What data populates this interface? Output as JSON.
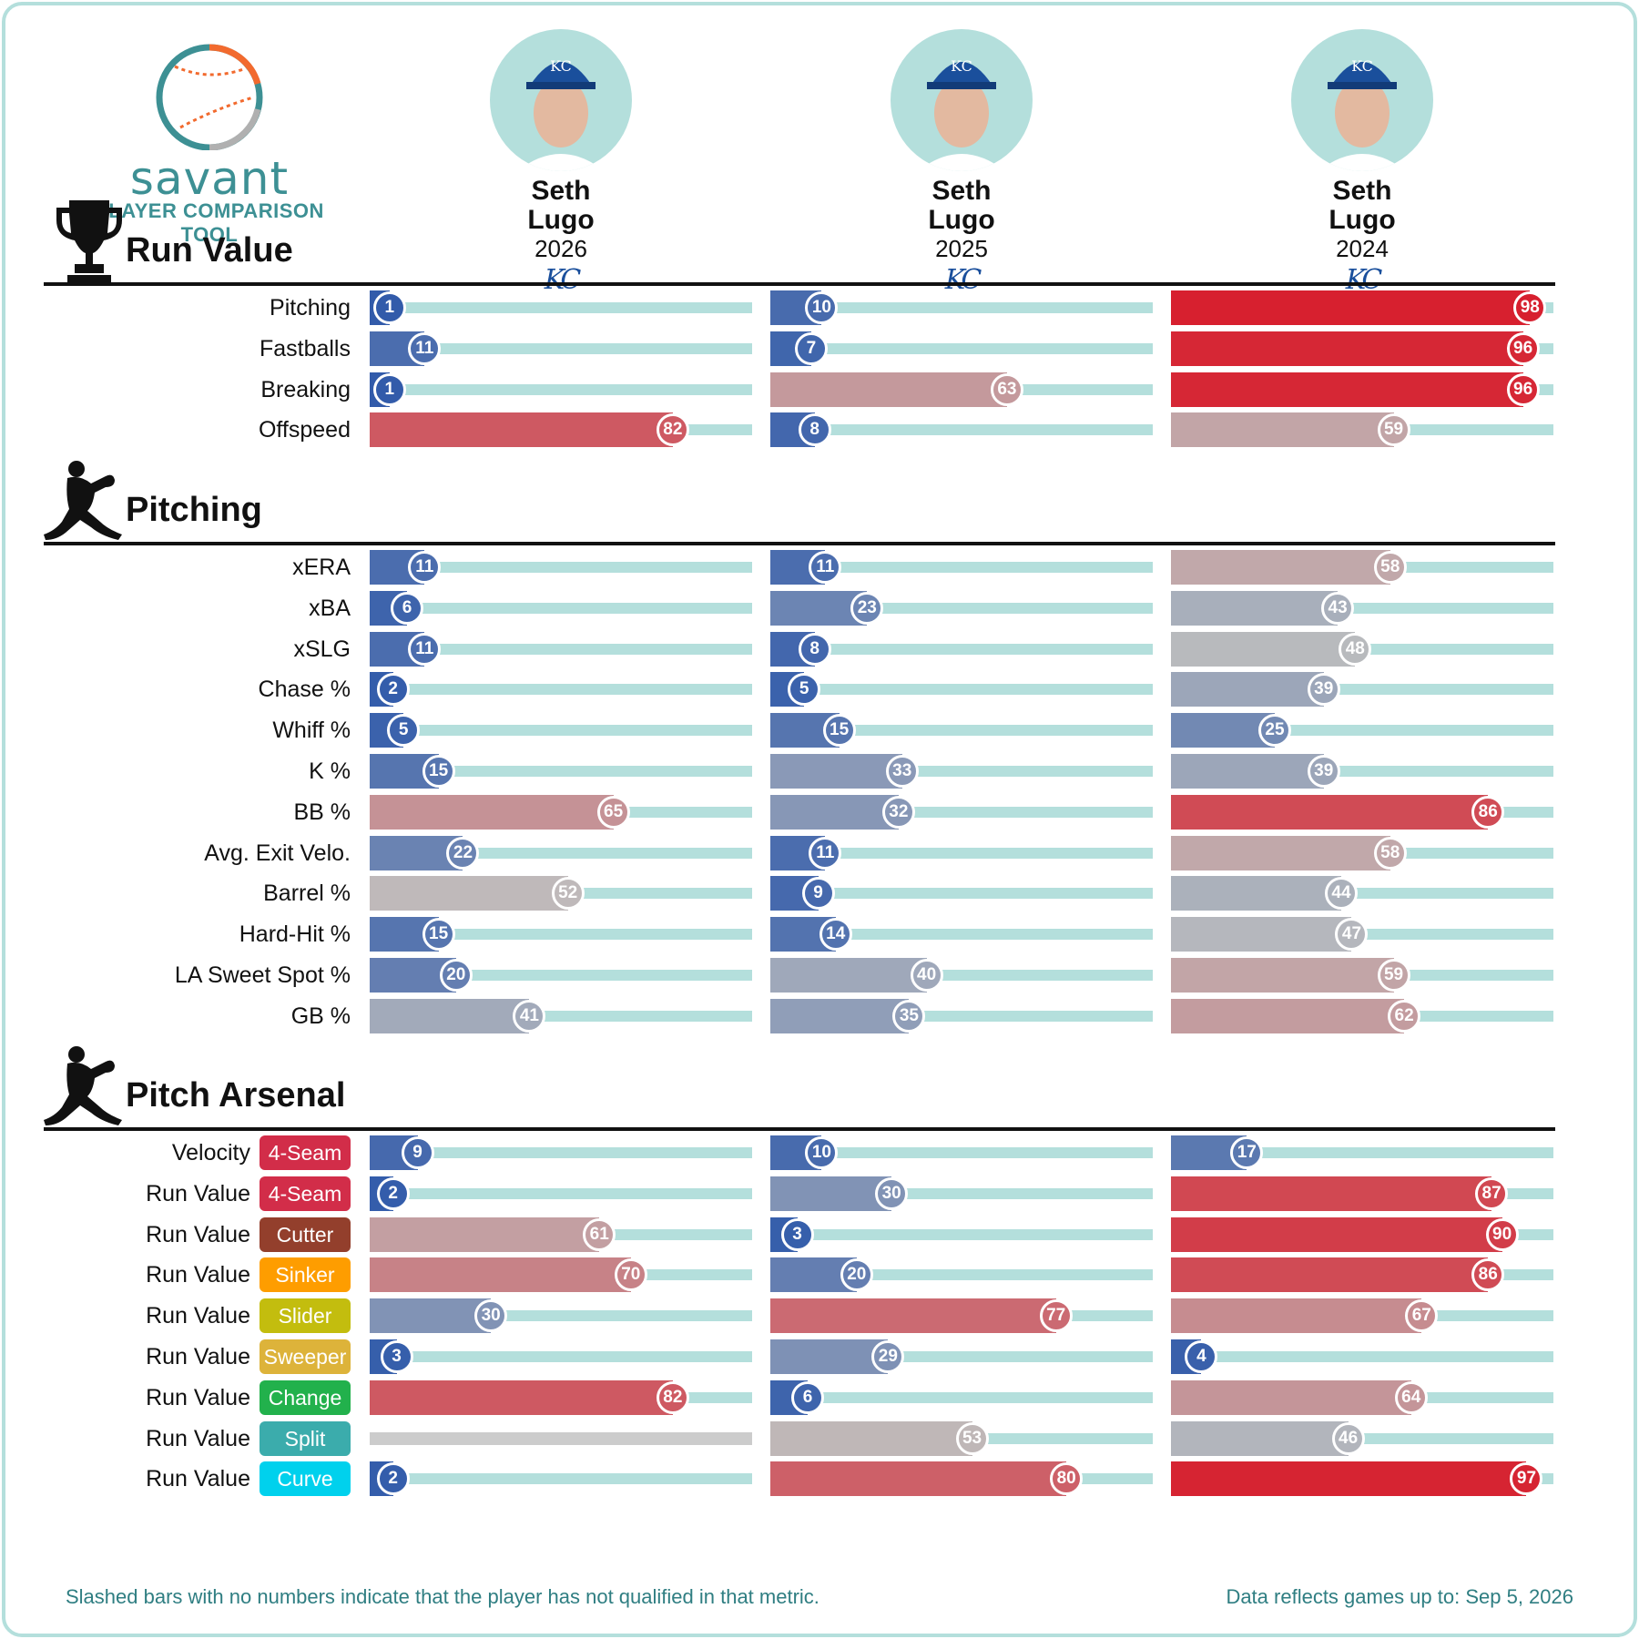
{
  "brand": {
    "name": "savant",
    "subtitle": "PLAYER COMPARISON TOOL"
  },
  "players": [
    {
      "first": "Seth",
      "last": "Lugo",
      "year": "2026",
      "team": "KC"
    },
    {
      "first": "Seth",
      "last": "Lugo",
      "year": "2025",
      "team": "KC"
    },
    {
      "first": "Seth",
      "last": "Lugo",
      "year": "2024",
      "team": "KC"
    }
  ],
  "chart_data": {
    "type": "bar",
    "value_scale": [
      0,
      100
    ],
    "sections": [
      {
        "title": "Run Value",
        "icon": "trophy-icon",
        "rows": [
          {
            "label": "Pitching",
            "values": [
              1,
              10,
              98
            ]
          },
          {
            "label": "Fastballs",
            "values": [
              11,
              7,
              96
            ]
          },
          {
            "label": "Breaking",
            "values": [
              1,
              63,
              96
            ]
          },
          {
            "label": "Offspeed",
            "values": [
              82,
              8,
              59
            ]
          }
        ]
      },
      {
        "title": "Pitching",
        "icon": "pitcher-icon",
        "rows": [
          {
            "label": "xERA",
            "values": [
              11,
              11,
              58
            ]
          },
          {
            "label": "xBA",
            "values": [
              6,
              23,
              43
            ]
          },
          {
            "label": "xSLG",
            "values": [
              11,
              8,
              48
            ]
          },
          {
            "label": "Chase %",
            "values": [
              2,
              5,
              39
            ]
          },
          {
            "label": "Whiff %",
            "values": [
              5,
              15,
              25
            ]
          },
          {
            "label": "K %",
            "values": [
              15,
              33,
              39
            ]
          },
          {
            "label": "BB %",
            "values": [
              65,
              32,
              86
            ]
          },
          {
            "label": "Avg. Exit Velo.",
            "values": [
              22,
              11,
              58
            ]
          },
          {
            "label": "Barrel %",
            "values": [
              52,
              9,
              44
            ]
          },
          {
            "label": "Hard-Hit %",
            "values": [
              15,
              14,
              47
            ]
          },
          {
            "label": "LA Sweet Spot %",
            "values": [
              20,
              40,
              59
            ]
          },
          {
            "label": "GB %",
            "values": [
              41,
              35,
              62
            ]
          }
        ]
      },
      {
        "title": "Pitch Arsenal",
        "icon": "pitcher-icon",
        "rows": [
          {
            "label": "Velocity",
            "pitch": "4-Seam",
            "pitch_color": "#d22d49",
            "values": [
              9,
              10,
              17
            ]
          },
          {
            "label": "Run Value",
            "pitch": "4-Seam",
            "pitch_color": "#d22d49",
            "values": [
              2,
              30,
              87
            ]
          },
          {
            "label": "Run Value",
            "pitch": "Cutter",
            "pitch_color": "#933f2c",
            "values": [
              61,
              3,
              90
            ]
          },
          {
            "label": "Run Value",
            "pitch": "Sinker",
            "pitch_color": "#fe9d00",
            "values": [
              70,
              20,
              86
            ]
          },
          {
            "label": "Run Value",
            "pitch": "Slider",
            "pitch_color": "#c3bd0e",
            "values": [
              30,
              77,
              67
            ]
          },
          {
            "label": "Run Value",
            "pitch": "Sweeper",
            "pitch_color": "#ddb33a",
            "values": [
              3,
              29,
              4
            ]
          },
          {
            "label": "Run Value",
            "pitch": "Change",
            "pitch_color": "#22b14c",
            "values": [
              82,
              6,
              64
            ]
          },
          {
            "label": "Run Value",
            "pitch": "Split",
            "pitch_color": "#3bacac",
            "values": [
              null,
              53,
              46
            ]
          },
          {
            "label": "Run Value",
            "pitch": "Curve",
            "pitch_color": "#00d1ed",
            "values": [
              2,
              80,
              97
            ]
          }
        ]
      }
    ]
  },
  "footer": {
    "note": "Slashed bars with no numbers indicate that the player has not qualified in that metric.",
    "data_date": "Data reflects games up to: Sep 5, 2026"
  }
}
